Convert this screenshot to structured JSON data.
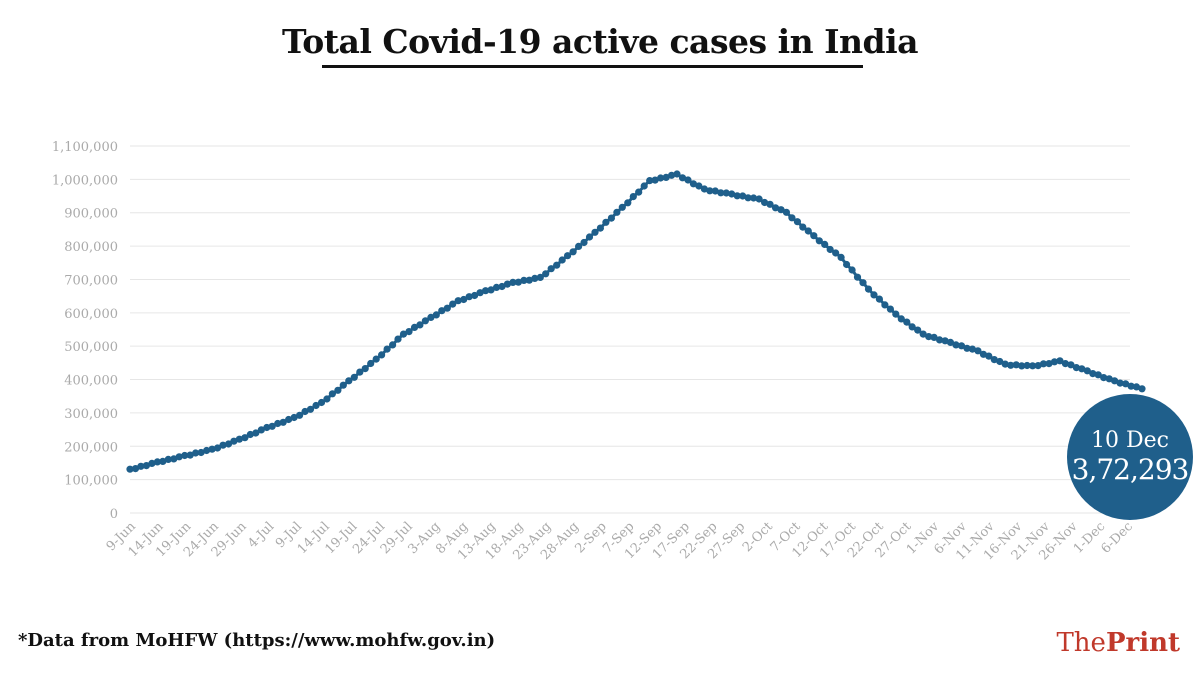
{
  "header": {
    "title": "Total Covid-19 active cases in India"
  },
  "footer": {
    "source": "*Data from MoHFW (https://www.mohfw.gov.in)",
    "brand_prefix": "The",
    "brand_name": "Print"
  },
  "callout": {
    "date": "10 Dec",
    "value": "3,72,293"
  },
  "colors": {
    "series": "#1f5f8b",
    "grid": "#e6e6e6",
    "axis_text": "#aaaaaa",
    "brand": "#c0392b"
  },
  "chart_data": {
    "type": "line",
    "title": "Total Covid-19 active cases in India",
    "xlabel": "",
    "ylabel": "",
    "ylim": [
      0,
      1100000
    ],
    "grid": true,
    "y_ticks": [
      0,
      100000,
      200000,
      300000,
      400000,
      500000,
      600000,
      700000,
      800000,
      900000,
      1000000,
      1100000
    ],
    "y_tick_labels": [
      "0",
      "100,000",
      "200,000",
      "300,000",
      "400,000",
      "500,000",
      "600,000",
      "700,000",
      "800,000",
      "900,000",
      "1,000,000",
      "1,100,000"
    ],
    "x_tick_labels": [
      "9-Jun",
      "14-Jun",
      "19-Jun",
      "24-Jun",
      "29-Jun",
      "4-Jul",
      "9-Jul",
      "14-Jul",
      "19-Jul",
      "24-Jul",
      "29-Jul",
      "3-Aug",
      "8-Aug",
      "13-Aug",
      "18-Aug",
      "23-Aug",
      "28-Aug",
      "2-Sep",
      "7-Sep",
      "12-Sep",
      "17-Sep",
      "22-Sep",
      "27-Sep",
      "2-Oct",
      "7-Oct",
      "12-Oct",
      "17-Oct",
      "22-Oct",
      "27-Oct",
      "1-Nov",
      "6-Nov",
      "11-Nov",
      "16-Nov",
      "21-Nov",
      "26-Nov",
      "1-Dec",
      "6-Dec"
    ],
    "series": [
      {
        "values": [
          130000,
          152000,
          171000,
          190000,
          220000,
          255000,
          285000,
          330000,
          395000,
          460000,
          535000,
          585000,
          635000,
          665000,
          690000,
          705000,
          770000,
          840000,
          915000,
          995000,
          1015000,
          970000,
          955000,
          940000,
          900000,
          830000,
          765000,
          670000,
          595000,
          535000,
          510000,
          485000,
          445000,
          440000,
          455000,
          425000,
          395000,
          372293
        ]
      }
    ]
  }
}
